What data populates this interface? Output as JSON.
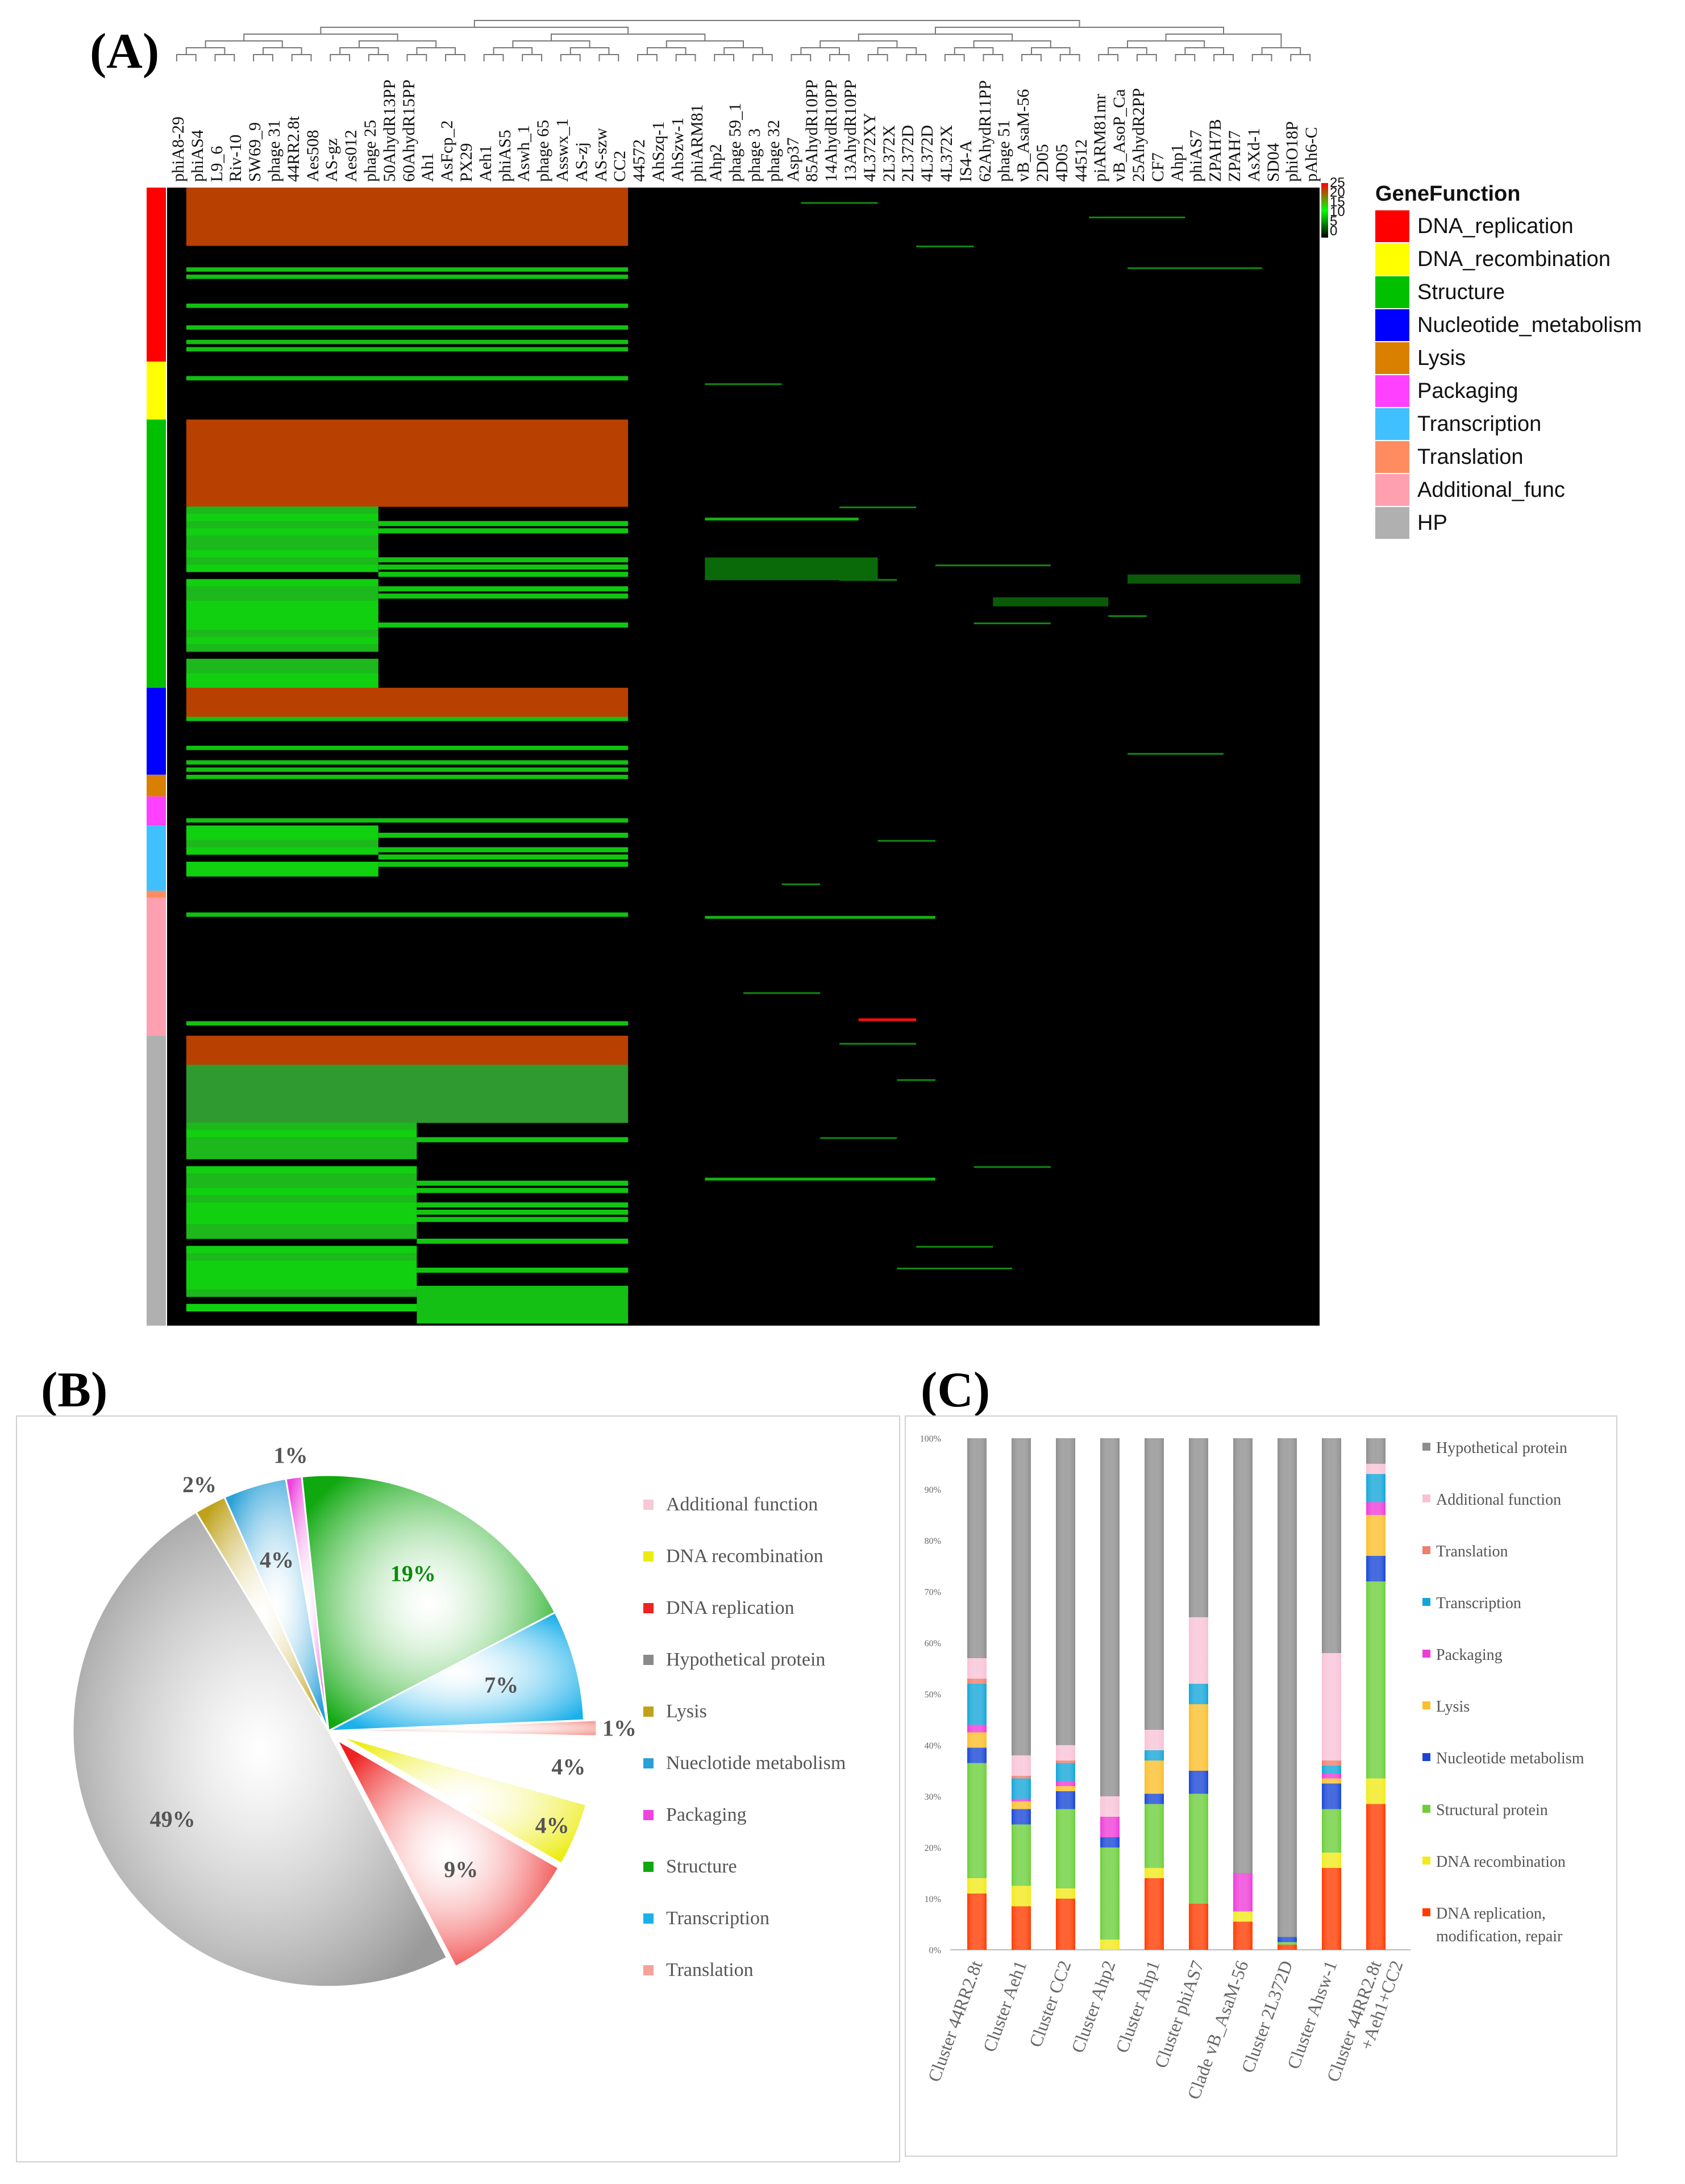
{
  "panels": {
    "a_label": "(A)",
    "b_label": "(B)",
    "c_label": "(C)"
  },
  "heatmap": {
    "legend_title": "GeneFunction",
    "legend_items": [
      {
        "label": "DNA_replication",
        "color": "#ff0000"
      },
      {
        "label": "DNA_recombination",
        "color": "#ffff00"
      },
      {
        "label": "Structure",
        "color": "#00c000"
      },
      {
        "label": "Nucleotide_metabolism",
        "color": "#0000ff"
      },
      {
        "label": "Lysis",
        "color": "#d98000"
      },
      {
        "label": "Packaging",
        "color": "#ff40ff"
      },
      {
        "label": "Transcription",
        "color": "#40c0ff"
      },
      {
        "label": "Translation",
        "color": "#ff8c60"
      },
      {
        "label": "Additional_func",
        "color": "#ffa0b0"
      },
      {
        "label": "HP",
        "color": "#b0b0b0"
      }
    ],
    "scale_ticks": [
      "25",
      "20",
      "15",
      "10",
      "5",
      "0"
    ],
    "columns": [
      "phiA8-29",
      "phiAS4",
      "L9_6",
      "Riv-10",
      "SW69_9",
      "phage 31",
      "44RR2.8t",
      "Aes508",
      "AS-gz",
      "Aes012",
      "phage 25",
      "50AhydR13PP",
      "60AhydR15PP",
      "Ah1",
      "AsFcp_2",
      "PX29",
      "Aeh1",
      "phiAS5",
      "Aswh_1",
      "phage 65",
      "Asswx_1",
      "AS-zj",
      "AS-szw",
      "CC2",
      "44572",
      "AhSzq-1",
      "AhSzw-1",
      "phiARM81",
      "Ahp2",
      "phage 59_1",
      "phage 3",
      "phage 32",
      "Asp37",
      "85AhydR10PP",
      "14AhydR10PP",
      "13AhydR10PP",
      "4L372XY",
      "2L372X",
      "2L372D",
      "4L372D",
      "4L372X",
      "IS4-A",
      "62AhydR11PP",
      "phage 51",
      "vB_AsaM-56",
      "2D05",
      "4D05",
      "44512",
      "piARM81mr",
      "vB_AsoP_Ca",
      "25AhydR2PP",
      "CF7",
      "Ahp1",
      "phiAS7",
      "ZPAH7B",
      "ZPAH7",
      "AsXd-1",
      "SD04",
      "phiO18P",
      "pAh6-C"
    ],
    "groups": [
      {
        "function": "DNA_replication",
        "color": "#ff0000",
        "rows": 24
      },
      {
        "function": "DNA_recombination",
        "color": "#ffff00",
        "rows": 8
      },
      {
        "function": "Structure",
        "color": "#00c000",
        "rows": 37
      },
      {
        "function": "Nucleotide_metabolism",
        "color": "#0000ff",
        "rows": 12
      },
      {
        "function": "Lysis",
        "color": "#d98000",
        "rows": 3
      },
      {
        "function": "Packaging",
        "color": "#ff40ff",
        "rows": 4
      },
      {
        "function": "Transcription",
        "color": "#40c0ff",
        "rows": 9
      },
      {
        "function": "Translation",
        "color": "#ff8c60",
        "rows": 1
      },
      {
        "function": "Additional_func",
        "color": "#ffa0b0",
        "rows": 19
      },
      {
        "function": "HP",
        "color": "#b0b0b0",
        "rows": 40
      }
    ]
  },
  "chart_data": [
    {
      "type": "heatmap",
      "title": "(A)",
      "legend_title": "GeneFunction",
      "color_scale": {
        "min": 0,
        "max": 25,
        "low": "#000000",
        "mid": "#00ff00",
        "high": "#ff0000"
      },
      "row_groups": [
        "DNA_replication",
        "DNA_recombination",
        "Structure",
        "Nucleotide_metabolism",
        "Lysis",
        "Packaging",
        "Transcription",
        "Translation",
        "Additional_func",
        "HP"
      ],
      "column_count": 60
    },
    {
      "type": "pie",
      "title": "(B)",
      "slices": [
        {
          "label": "Structure",
          "value": 19,
          "display": "19%",
          "color": "#0fa80f"
        },
        {
          "label": "Transcription",
          "value": 7,
          "display": "7%",
          "color": "#1bb0ea"
        },
        {
          "label": "Translation",
          "value": 1,
          "display": "1%",
          "color": "#f4a29a"
        },
        {
          "label": "Additional function",
          "value": 4,
          "display": "4%",
          "color": "#ffffff"
        },
        {
          "label": "DNA recombination",
          "value": 4,
          "display": "4%",
          "color": "#ecec10"
        },
        {
          "label": "DNA replication",
          "value": 9,
          "display": "9%",
          "color": "#ee2222"
        },
        {
          "label": "Hypothetical protein",
          "value": 49,
          "display": "49%",
          "color": "#9a9a9a"
        },
        {
          "label": "Lysis",
          "value": 2,
          "display": "2%",
          "color": "#bfa21a"
        },
        {
          "label": "Nueclotide metabolism",
          "value": 4,
          "display": "4%",
          "color": "#2aa0d8"
        },
        {
          "label": "Packaging",
          "value": 1,
          "display": "1%",
          "color": "#ee44dd"
        }
      ],
      "legend": [
        {
          "label": "Additional function",
          "color": "#f8c8d4"
        },
        {
          "label": "DNA recombination",
          "color": "#ecec10"
        },
        {
          "label": "DNA replication",
          "color": "#ee2222"
        },
        {
          "label": "Hypothetical protein",
          "color": "#8a8a8a"
        },
        {
          "label": "Lysis",
          "color": "#bfa21a"
        },
        {
          "label": "Nueclotide metabolism",
          "color": "#2aa0d8"
        },
        {
          "label": "Packaging",
          "color": "#ee44dd"
        },
        {
          "label": "Structure",
          "color": "#0fa80f"
        },
        {
          "label": "Transcription",
          "color": "#1bb0ea"
        },
        {
          "label": "Translation",
          "color": "#f4a29a"
        }
      ]
    },
    {
      "type": "bar",
      "stacked": true,
      "title": "(C)",
      "ylim": [
        0,
        100
      ],
      "yticks": [
        "0%",
        "10%",
        "20%",
        "30%",
        "40%",
        "50%",
        "60%",
        "70%",
        "80%",
        "90%",
        "100%"
      ],
      "categories": [
        "Cluster 44RR2.8t",
        "Cluster Aeh1",
        "Cluster CC2",
        "Cluster Ahp2",
        "Cluster Ahp1",
        "Cluster phiAS7",
        "Clade vB_AsaM-56",
        "Cluster 2L372D",
        "Cluster Ahsw-1",
        "Cluster 44RR2.8t\n+Aeh1+CC2"
      ],
      "series": [
        {
          "name": "DNA replication,\nmodification, repair",
          "color": "#ff3b00",
          "values": [
            11,
            8.5,
            10,
            0,
            14,
            9,
            5.5,
            1,
            16,
            28.5
          ]
        },
        {
          "name": "DNA recombination",
          "color": "#f2ea1a",
          "values": [
            3,
            4,
            2,
            2,
            2,
            0,
            2,
            0,
            3,
            5
          ]
        },
        {
          "name": "Structural protein",
          "color": "#6ccf3a",
          "values": [
            22.5,
            12,
            15.5,
            18,
            12.5,
            21.5,
            0,
            0.5,
            8.5,
            38.5
          ]
        },
        {
          "name": "Nucleotide metabolism",
          "color": "#1846d6",
          "values": [
            3,
            3,
            3.5,
            2,
            2,
            4.5,
            0,
            1,
            5,
            5
          ]
        },
        {
          "name": "Lysis",
          "color": "#fbbf2c",
          "values": [
            3,
            1.5,
            1,
            0,
            6.5,
            13,
            0,
            0,
            1,
            8
          ]
        },
        {
          "name": "Packaging",
          "color": "#ee3bd8",
          "values": [
            1.5,
            0.5,
            1,
            4,
            0,
            0,
            7.5,
            0,
            1,
            2.5
          ]
        },
        {
          "name": "Transcription",
          "color": "#13a6d8",
          "values": [
            8,
            4,
            3.5,
            0,
            2,
            4,
            0,
            0,
            1.5,
            5.5
          ]
        },
        {
          "name": "Translation",
          "color": "#f07e6e",
          "values": [
            1,
            0.5,
            0.5,
            0,
            0,
            0,
            0,
            0,
            1,
            0
          ]
        },
        {
          "name": "Additional function",
          "color": "#f8c2d6",
          "values": [
            4,
            4,
            3,
            4,
            4,
            13,
            0,
            0,
            21,
            2
          ]
        },
        {
          "name": "Hypothetical protein",
          "color": "#8e8e8e",
          "values": [
            43,
            62,
            60,
            70,
            57,
            35,
            85,
            97.5,
            42,
            5
          ]
        }
      ],
      "legend_order": [
        "Hypothetical protein",
        "Additional function",
        "Translation",
        "Transcription",
        "Packaging",
        "Lysis",
        "Nucleotide metabolism",
        "Structural protein",
        "DNA recombination",
        "DNA replication,\nmodification, repair"
      ]
    }
  ]
}
